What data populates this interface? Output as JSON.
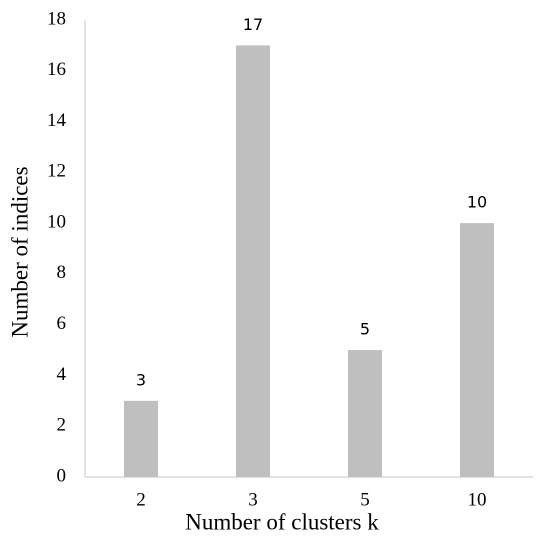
{
  "chart_data": {
    "type": "bar",
    "x_label": "Number of clusters k",
    "y_label": "Number of indices",
    "categories": [
      "2",
      "3",
      "5",
      "10"
    ],
    "values": [
      3,
      17,
      5,
      10
    ],
    "color": "#bfbfbf",
    "ylim": [
      0,
      18
    ],
    "yticks": [
      0,
      2,
      4,
      6,
      8,
      10,
      12,
      14,
      16,
      18
    ],
    "grid": false
  }
}
